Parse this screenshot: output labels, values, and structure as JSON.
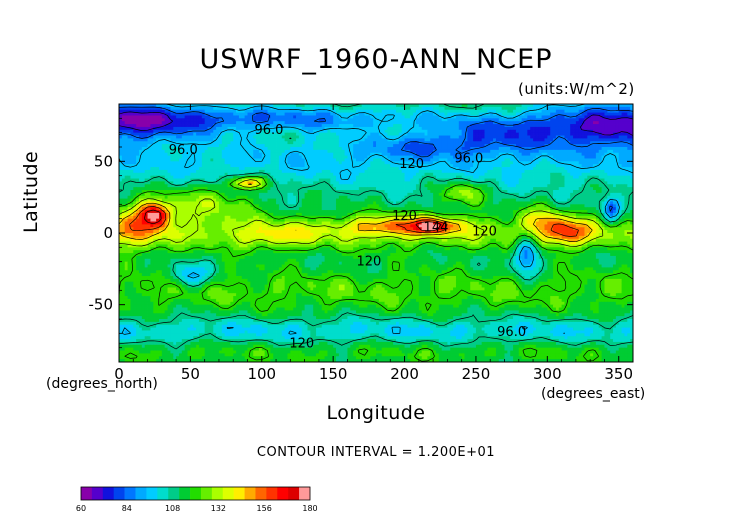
{
  "chart_data": {
    "type": "heatmap",
    "title": "USWRF_1960-ANN_NCEP",
    "units_label": "(units:W/m^2)",
    "xlabel": "Longitude",
    "ylabel": "Latitude",
    "x_units_note": "(degrees_north)",
    "y_units_note": "(degrees_east)",
    "contour_interval_text": "CONTOUR INTERVAL = 1.200E+01",
    "xlim": [
      0,
      360
    ],
    "ylim": [
      -90,
      90
    ],
    "x_ticks": [
      0,
      50,
      100,
      150,
      200,
      250,
      300,
      350
    ],
    "y_ticks": [
      -50,
      0,
      50
    ],
    "contour_labels": [
      {
        "text": "96.0",
        "lon": 105,
        "lat": 72
      },
      {
        "text": "96.0",
        "lon": 45,
        "lat": 58
      },
      {
        "text": "96.0",
        "lon": 245,
        "lat": 52
      },
      {
        "text": "120",
        "lon": 205,
        "lat": 48
      },
      {
        "text": "120",
        "lon": 200,
        "lat": 12
      },
      {
        "text": "144",
        "lon": 222,
        "lat": 4
      },
      {
        "text": "120",
        "lon": 256,
        "lat": 1
      },
      {
        "text": "120",
        "lon": 175,
        "lat": -20
      },
      {
        "text": "96.0",
        "lon": 275,
        "lat": -69
      },
      {
        "text": "120",
        "lon": 128,
        "lat": -77
      }
    ],
    "colorbar": {
      "min": 60,
      "max": 180,
      "tick_labels": [
        "60",
        "84",
        "108",
        "132",
        "156",
        "180"
      ],
      "colors": [
        "#8800aa",
        "#5500cc",
        "#1111dd",
        "#0044ee",
        "#0077ff",
        "#00aaff",
        "#00ccff",
        "#00ddcc",
        "#00cc88",
        "#00cc33",
        "#22dd00",
        "#66ee00",
        "#aaff00",
        "#ddff00",
        "#ffee00",
        "#ffaa00",
        "#ff6600",
        "#ff3300",
        "#ff0000",
        "#dd0000",
        "#ff9999"
      ]
    },
    "regions_note": "Annual mean upward shortwave radiation flux: blue lows (~60-96) over northern high latitudes and North Pacific; green mid values (~108-132) most areas; yellow/red highs (~144-180) over North Africa/Sahara (~10-35E), equatorial Pacific (~170-230E), and South America (~295-325E); blue/green band near 60S and light green over Antarctica."
  }
}
